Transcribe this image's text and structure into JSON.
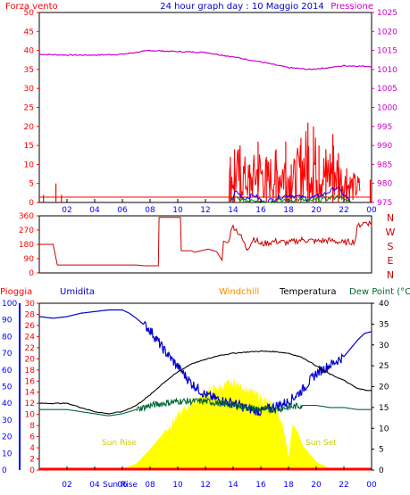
{
  "title": "24 hour graph day : 10 Maggio 2014",
  "colors": {
    "wind": "#ff0000",
    "gust": "#ff0000",
    "avgwind": "#0000ff",
    "avgwind2": "#008000",
    "pressure": "#cc00cc",
    "direction": "#cc0000",
    "rain": "#ff0000",
    "humidity": "#0000cc",
    "windchill": "#ff8800",
    "temperature": "#000000",
    "dewpoint": "#006633",
    "solar": "#ffff00",
    "sunlabel": "#cccc00",
    "axisleft": "#ff0000",
    "axisblue": "#0000ff",
    "frame": "#000000"
  },
  "chart_data": [
    {
      "id": "wind-pressure",
      "type": "line",
      "left_label": "Forza vento",
      "right_label": "Pressione",
      "left_ticks": [
        0,
        5,
        10,
        15,
        20,
        25,
        30,
        35,
        40,
        45,
        50
      ],
      "left_range": [
        0,
        50
      ],
      "right_ticks": [
        975,
        980,
        985,
        990,
        995,
        1000,
        1005,
        1010,
        1015,
        1020,
        1025
      ],
      "right_range": [
        975,
        1025
      ],
      "x_ticks": [
        "02",
        "04",
        "06",
        "08",
        "10",
        "12",
        "14",
        "16",
        "18",
        "20",
        "22",
        "00"
      ],
      "x_range": [
        0,
        24
      ],
      "pressure": [
        [
          0,
          1014
        ],
        [
          2,
          1013.8
        ],
        [
          4,
          1013.8
        ],
        [
          6,
          1014
        ],
        [
          8,
          1015
        ],
        [
          10,
          1014.7
        ],
        [
          12,
          1014.5
        ],
        [
          14,
          1013.3
        ],
        [
          16,
          1012
        ],
        [
          18,
          1010.5
        ],
        [
          19.5,
          1010
        ],
        [
          21,
          1010.5
        ],
        [
          22,
          1011
        ],
        [
          24,
          1010.8
        ]
      ],
      "wind_events": [
        [
          0.3,
          2
        ],
        [
          1.2,
          5
        ],
        [
          1.6,
          2
        ],
        [
          13.8,
          12
        ],
        [
          14.1,
          14
        ],
        [
          14.5,
          15
        ],
        [
          15.2,
          10
        ],
        [
          15.8,
          16
        ],
        [
          16.4,
          12
        ],
        [
          17.1,
          14
        ],
        [
          17.8,
          16
        ],
        [
          18.2,
          10
        ],
        [
          18.9,
          17
        ],
        [
          19.4,
          21
        ],
        [
          19.8,
          20
        ],
        [
          20.2,
          15
        ],
        [
          20.7,
          14
        ],
        [
          21.2,
          18
        ],
        [
          21.6,
          13
        ],
        [
          22.2,
          9
        ],
        [
          23.9,
          6
        ]
      ],
      "avgwind": [
        [
          13.8,
          0
        ],
        [
          14.2,
          3
        ],
        [
          14.8,
          1
        ],
        [
          15.5,
          2
        ],
        [
          16.2,
          0
        ],
        [
          17,
          1
        ],
        [
          18,
          2
        ],
        [
          19.5,
          1
        ],
        [
          20.5,
          2
        ],
        [
          21.5,
          4
        ],
        [
          22,
          2
        ],
        [
          22.5,
          0
        ]
      ]
    },
    {
      "id": "wind-direction",
      "type": "line",
      "left_ticks": [
        0,
        90,
        180,
        270,
        360
      ],
      "left_range": [
        0,
        360
      ],
      "cardinals": [
        "N",
        "W",
        "S",
        "E",
        "N"
      ],
      "x_range": [
        0,
        24
      ],
      "direction": [
        [
          0,
          180
        ],
        [
          1,
          180
        ],
        [
          1.3,
          50
        ],
        [
          7,
          50
        ],
        [
          7.6,
          45
        ],
        [
          8.6,
          45
        ],
        [
          8.65,
          350
        ],
        [
          10.2,
          350
        ],
        [
          10.25,
          140
        ],
        [
          11,
          140
        ],
        [
          11.2,
          130
        ],
        [
          12.2,
          150
        ],
        [
          12.8,
          135
        ],
        [
          13.2,
          80
        ],
        [
          13.3,
          200
        ],
        [
          13.6,
          190
        ],
        [
          14,
          300
        ],
        [
          14.5,
          240
        ],
        [
          15,
          150
        ],
        [
          15.5,
          220
        ],
        [
          16,
          180
        ],
        [
          17,
          200
        ],
        [
          18,
          190
        ],
        [
          19,
          210
        ],
        [
          20,
          200
        ],
        [
          21,
          205
        ],
        [
          22,
          190
        ],
        [
          22.8,
          200
        ],
        [
          23,
          300
        ],
        [
          23.6,
          320
        ],
        [
          24,
          310
        ]
      ]
    },
    {
      "id": "rain-humidity-temperature",
      "type": "line",
      "header_labels": [
        "Pioggia",
        "Umidita",
        "Windchill",
        "Temperatura",
        "Dew Point (°C"
      ],
      "left_ticks_humidity": [
        0,
        10,
        20,
        30,
        40,
        50,
        60,
        70,
        80,
        90,
        100
      ],
      "left_ticks_rain": [
        0,
        2,
        4,
        6,
        8,
        10,
        12,
        14,
        16,
        18,
        20,
        22,
        24,
        26,
        28,
        30
      ],
      "right_ticks": [
        0,
        5,
        10,
        15,
        20,
        25,
        30,
        35,
        40
      ],
      "right_range": [
        0,
        40
      ],
      "x_ticks": [
        "02",
        "04",
        "06",
        "08",
        "10",
        "12",
        "14",
        "16",
        "18",
        "20",
        "22",
        "00"
      ],
      "x_range": [
        0,
        24
      ],
      "sun_rise_label": "Sun Rise",
      "sun_set_label": "Sun Set",
      "sun_rise_tick": "Sun Rise",
      "humidity": [
        [
          0,
          92
        ],
        [
          1,
          91
        ],
        [
          2,
          92
        ],
        [
          3,
          94
        ],
        [
          4,
          95
        ],
        [
          5,
          96
        ],
        [
          6,
          96
        ],
        [
          6.5,
          94
        ],
        [
          7,
          91
        ],
        [
          8,
          84
        ],
        [
          9,
          72
        ],
        [
          10,
          62
        ],
        [
          11,
          52
        ],
        [
          12,
          45
        ],
        [
          13,
          42
        ],
        [
          14,
          40
        ],
        [
          15,
          37
        ],
        [
          16,
          35
        ],
        [
          17,
          38
        ],
        [
          18,
          41
        ],
        [
          19,
          48
        ],
        [
          20,
          58
        ],
        [
          21,
          63
        ],
        [
          22,
          68
        ],
        [
          23,
          78
        ],
        [
          23.5,
          82
        ],
        [
          24,
          83
        ]
      ],
      "temperature": [
        [
          0,
          16
        ],
        [
          2,
          16
        ],
        [
          3,
          15
        ],
        [
          4,
          14
        ],
        [
          5,
          13.5
        ],
        [
          6,
          14
        ],
        [
          7,
          15.5
        ],
        [
          8,
          18
        ],
        [
          9,
          21
        ],
        [
          10,
          23.5
        ],
        [
          11,
          25.5
        ],
        [
          12,
          26.5
        ],
        [
          13,
          27.5
        ],
        [
          14,
          28
        ],
        [
          15,
          28.3
        ],
        [
          16,
          28.5
        ],
        [
          17,
          28.4
        ],
        [
          18,
          28
        ],
        [
          19,
          27
        ],
        [
          20,
          25
        ],
        [
          21,
          23
        ],
        [
          22,
          21.5
        ],
        [
          23,
          19.5
        ],
        [
          24,
          19
        ]
      ],
      "dewpoint": [
        [
          0,
          14.5
        ],
        [
          2,
          14.5
        ],
        [
          3,
          14
        ],
        [
          4,
          13.5
        ],
        [
          5,
          13
        ],
        [
          6,
          13.5
        ],
        [
          7,
          14.5
        ],
        [
          8,
          15.5
        ],
        [
          9,
          16
        ],
        [
          10,
          16.5
        ],
        [
          11,
          16.5
        ],
        [
          12,
          16.5
        ],
        [
          13,
          16
        ],
        [
          14,
          15.5
        ],
        [
          15,
          15
        ],
        [
          16,
          14.5
        ],
        [
          17,
          14.5
        ],
        [
          18,
          15
        ],
        [
          19,
          15.5
        ],
        [
          20,
          15.5
        ],
        [
          21,
          15
        ],
        [
          22,
          15
        ],
        [
          23,
          14.5
        ],
        [
          24,
          14.5
        ]
      ],
      "solar": [
        [
          0,
          0
        ],
        [
          5,
          0
        ],
        [
          6,
          0.3
        ],
        [
          7,
          1.5
        ],
        [
          8,
          5
        ],
        [
          9,
          9
        ],
        [
          10,
          13
        ],
        [
          11,
          16
        ],
        [
          12,
          18.5
        ],
        [
          13,
          20
        ],
        [
          14,
          21
        ],
        [
          15,
          19.5
        ],
        [
          16,
          17.5
        ],
        [
          17,
          15
        ],
        [
          17.5,
          12
        ],
        [
          17.8,
          7
        ],
        [
          18,
          3
        ],
        [
          18.3,
          11
        ],
        [
          18.7,
          9
        ],
        [
          19,
          6
        ],
        [
          20,
          2
        ],
        [
          21,
          0.3
        ],
        [
          22,
          0
        ],
        [
          24,
          0
        ]
      ],
      "rain": [
        [
          0,
          0
        ],
        [
          24,
          0
        ]
      ]
    }
  ]
}
